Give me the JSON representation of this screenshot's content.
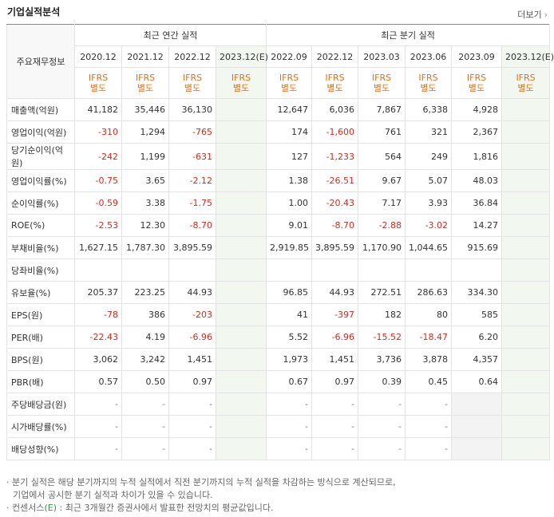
{
  "header": {
    "title": "기업실적분석",
    "more": "더보기"
  },
  "table": {
    "corner": "주요재무정보",
    "groups": [
      "최근 연간 실적",
      "최근 분기 실적"
    ],
    "periods": [
      "2020.12",
      "2021.12",
      "2022.12",
      "2023.12(E)",
      "2022.09",
      "2022.12",
      "2023.03",
      "2023.06",
      "2023.09",
      "2023.12(E)"
    ],
    "standards": [
      "IFRS\n별도",
      "IFRS\n별도",
      "IFRS\n별도",
      "IFRS\n별도",
      "IFRS\n별도",
      "IFRS\n별도",
      "IFRS\n별도",
      "IFRS\n별도",
      "IFRS\n별도",
      "IFRS\n별도"
    ],
    "rows": [
      {
        "label": "매출액(억원)",
        "values": [
          "41,182",
          "35,446",
          "36,130",
          null,
          "12,647",
          "6,036",
          "7,867",
          "6,338",
          "4,928",
          null
        ]
      },
      {
        "label": "영업이익(억원)",
        "values": [
          "-310",
          "1,294",
          "-765",
          null,
          "174",
          "-1,600",
          "761",
          "321",
          "2,367",
          null
        ]
      },
      {
        "label": "당기순이익(억원)",
        "values": [
          "-242",
          "1,199",
          "-631",
          null,
          "127",
          "-1,233",
          "564",
          "249",
          "1,816",
          null
        ]
      },
      {
        "label": "영업이익률(%)",
        "values": [
          "-0.75",
          "3.65",
          "-2.12",
          null,
          "1.38",
          "-26.51",
          "9.67",
          "5.07",
          "48.03",
          null
        ]
      },
      {
        "label": "순이익률(%)",
        "values": [
          "-0.59",
          "3.38",
          "-1.75",
          null,
          "1.00",
          "-20.43",
          "7.17",
          "3.93",
          "36.84",
          null
        ]
      },
      {
        "label": "ROE(%)",
        "values": [
          "-2.53",
          "12.30",
          "-8.70",
          null,
          "9.01",
          "-8.70",
          "-2.88",
          "-3.02",
          "14.27",
          null
        ]
      },
      {
        "label": "부채비율(%)",
        "values": [
          "1,627.15",
          "1,787.30",
          "3,895.59",
          null,
          "2,919.85",
          "3,895.59",
          "1,170.90",
          "1,044.65",
          "915.69",
          null
        ]
      },
      {
        "label": "당좌비율(%)",
        "values": [
          null,
          null,
          null,
          null,
          null,
          null,
          null,
          null,
          null,
          null
        ]
      },
      {
        "label": "유보율(%)",
        "values": [
          "205.37",
          "223.25",
          "44.93",
          null,
          "96.85",
          "44.93",
          "272.51",
          "286.63",
          "334.30",
          null
        ]
      },
      {
        "label": "EPS(원)",
        "values": [
          "-78",
          "386",
          "-203",
          null,
          "41",
          "-397",
          "182",
          "80",
          "585",
          null
        ]
      },
      {
        "label": "PER(배)",
        "values": [
          "-22.43",
          "4.19",
          "-6.96",
          null,
          "5.52",
          "-6.96",
          "-15.52",
          "-18.47",
          "6.20",
          null
        ]
      },
      {
        "label": "BPS(원)",
        "values": [
          "3,062",
          "3,242",
          "1,451",
          null,
          "1,973",
          "1,451",
          "3,736",
          "3,878",
          "4,357",
          null
        ]
      },
      {
        "label": "PBR(배)",
        "values": [
          "0.57",
          "0.50",
          "0.97",
          null,
          "0.67",
          "0.97",
          "0.39",
          "0.45",
          "0.64",
          null
        ]
      },
      {
        "label": "주당배당금(원)",
        "values": [
          "-",
          "-",
          "-",
          null,
          "-",
          "-",
          "-",
          "-",
          null,
          null
        ]
      },
      {
        "label": "시가배당률(%)",
        "values": [
          "-",
          "-",
          "-",
          null,
          "-",
          "-",
          "-",
          "-",
          null,
          null
        ]
      },
      {
        "label": "배당성향(%)",
        "values": [
          "-",
          "-",
          "-",
          null,
          "-",
          "-",
          "-",
          "-",
          null,
          null
        ]
      }
    ]
  },
  "notes": [
    {
      "parts": [
        "분기 실적은 해당 분기까지의 누적 실적에서 직전 분기까지의 누적 실적을 차감하는 방식으로 계산되므로,\n기업에서 공시한 분기 실적과 차이가 있을 수 있습니다."
      ]
    },
    {
      "parts": [
        "컨센서스",
        "(E)",
        " : 최근 3개월간 증권사에서 발표한 전망치의 평균값입니다."
      ]
    }
  ]
}
